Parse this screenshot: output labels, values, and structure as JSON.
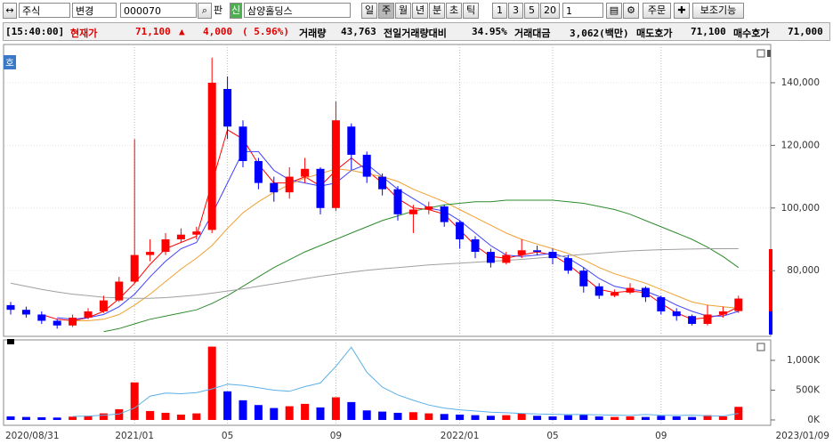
{
  "toolbar": {
    "market": "주식",
    "change": "변경",
    "code": "000070",
    "pan": "판",
    "new": "신",
    "name": "삼양홀딩스",
    "periods": [
      "일",
      "주",
      "월",
      "년",
      "분",
      "초",
      "틱"
    ],
    "intervals": [
      "1",
      "3",
      "5",
      "20"
    ],
    "count": "1",
    "order": "주문",
    "aux": "보조기능"
  },
  "info": [
    "[15:40:00]",
    "현재가",
    "71,100",
    "▲",
    "4,000",
    "( 5.96%)",
    "거래량",
    "43,763",
    "전일거래량대비",
    "34.95%",
    "거래대금",
    "3,062(백만)",
    "매도호가",
    "71,100",
    "매수호가",
    "71,000"
  ],
  "badge": "호",
  "chart_data": [
    {
      "type": "candlestick",
      "categories": [
        "2020/08/31",
        null,
        null,
        null,
        null,
        null,
        null,
        null,
        "2021/01",
        null,
        null,
        null,
        null,
        null,
        "05",
        null,
        null,
        null,
        null,
        null,
        null,
        "09",
        null,
        null,
        null,
        null,
        null,
        null,
        null,
        "2022/01",
        null,
        null,
        null,
        null,
        null,
        "05",
        null,
        null,
        null,
        null,
        null,
        null,
        "09",
        null,
        null,
        null,
        null,
        "2023/01/09"
      ],
      "open": [
        69000,
        67500,
        66000,
        64000,
        62500,
        65000,
        67000,
        70500,
        76500,
        85000,
        86000,
        90000,
        91500,
        93000,
        138000,
        126000,
        115000,
        108000,
        105000,
        110000,
        112500,
        100000,
        126000,
        117000,
        110000,
        106000,
        98000,
        99500,
        100500,
        95500,
        90000,
        86000,
        82500,
        85000,
        86500,
        86000,
        84000,
        80000,
        75000,
        72000,
        73000,
        74500,
        71500,
        67000,
        65500,
        63000,
        66000,
        67100
      ],
      "high": [
        70000,
        68500,
        67000,
        64500,
        66000,
        68000,
        72000,
        78000,
        122000,
        90000,
        92000,
        93500,
        94000,
        148000,
        142000,
        128000,
        116000,
        110000,
        113000,
        116000,
        113000,
        134000,
        127000,
        118000,
        111000,
        107000,
        101000,
        102000,
        101000,
        96000,
        91000,
        87000,
        86000,
        90000,
        88000,
        87000,
        85000,
        81000,
        76000,
        74000,
        76000,
        75000,
        72000,
        68000,
        66000,
        69000,
        68500,
        72000
      ],
      "low": [
        66000,
        65000,
        63000,
        61500,
        62000,
        64500,
        66500,
        70000,
        76000,
        83000,
        85000,
        89000,
        90000,
        92000,
        122000,
        113000,
        106000,
        102000,
        103000,
        108000,
        98000,
        99000,
        112000,
        108000,
        104000,
        96000,
        92000,
        98000,
        94000,
        87000,
        84000,
        81000,
        82000,
        84000,
        85000,
        82000,
        79000,
        73000,
        71000,
        71500,
        72500,
        70000,
        66000,
        64000,
        62500,
        62500,
        65000,
        66500
      ],
      "close": [
        67500,
        66000,
        64000,
        62500,
        65000,
        67000,
        70500,
        76500,
        85000,
        86000,
        90000,
        91500,
        92500,
        140000,
        126000,
        115000,
        108000,
        105000,
        110000,
        112500,
        100000,
        128000,
        117000,
        110000,
        106000,
        98000,
        99500,
        100500,
        95500,
        90000,
        86000,
        82500,
        85000,
        86500,
        86000,
        84000,
        80000,
        75000,
        72000,
        73000,
        74500,
        71500,
        67000,
        65500,
        63000,
        66000,
        67000,
        71100
      ],
      "up_color": "#ff0000",
      "down_color": "#0000ff",
      "series": [
        {
          "color": "#ff0000",
          "values": [
            null,
            null,
            66000,
            64500,
            64000,
            65000,
            67000,
            71000,
            76000,
            82000,
            87000,
            89000,
            91000,
            108000,
            125000,
            122000,
            114000,
            108000,
            108000,
            110000,
            107000,
            112000,
            116000,
            112000,
            108000,
            103000,
            100000,
            99500,
            98000,
            93000,
            88000,
            84500,
            84000,
            85000,
            86000,
            85000,
            82000,
            78000,
            74000,
            73000,
            73500,
            73000,
            69500,
            66500,
            64500,
            65000,
            66000,
            68500
          ]
        },
        {
          "color": "#4040ff",
          "values": [
            null,
            null,
            null,
            65000,
            64500,
            65000,
            66000,
            68500,
            72500,
            78000,
            83000,
            87000,
            89000,
            98000,
            108000,
            118000,
            118000,
            112000,
            109000,
            108000,
            107000,
            108000,
            112000,
            114000,
            110000,
            106000,
            103000,
            100000,
            99000,
            96000,
            92000,
            88000,
            85000,
            84500,
            85000,
            85500,
            84000,
            81000,
            77500,
            75000,
            74000,
            73500,
            71500,
            69000,
            67000,
            65500,
            65500,
            67000
          ]
        },
        {
          "color": "#f0a030",
          "values": [
            null,
            null,
            null,
            null,
            64000,
            64000,
            64500,
            66000,
            69000,
            72500,
            76500,
            80500,
            84000,
            88000,
            93500,
            98500,
            102000,
            105000,
            107500,
            109500,
            111000,
            112500,
            112000,
            111000,
            110000,
            108500,
            106000,
            104000,
            102000,
            99500,
            97000,
            94500,
            92000,
            90000,
            88500,
            87000,
            85500,
            83500,
            81000,
            79000,
            77500,
            76000,
            74000,
            72000,
            70000,
            69000,
            68500,
            68000
          ]
        },
        {
          "color": "#2e8b2e",
          "values": [
            null,
            null,
            null,
            null,
            null,
            null,
            60500,
            61500,
            63000,
            64500,
            65500,
            66500,
            67500,
            69500,
            72000,
            75000,
            78000,
            81000,
            83500,
            86000,
            88000,
            90000,
            92000,
            94000,
            96000,
            97500,
            99000,
            100000,
            101000,
            101500,
            102000,
            102000,
            102500,
            102500,
            102500,
            102500,
            102000,
            101500,
            100500,
            99500,
            98000,
            96000,
            94000,
            92000,
            90000,
            87500,
            84500,
            81000
          ]
        },
        {
          "color": "#a0a0a0",
          "values": [
            76000,
            75000,
            74000,
            73200,
            72500,
            72000,
            71500,
            71300,
            71200,
            71200,
            71400,
            71800,
            72200,
            72800,
            73500,
            74200,
            75000,
            75800,
            76600,
            77400,
            78200,
            78900,
            79500,
            80100,
            80600,
            81000,
            81400,
            81800,
            82100,
            82400,
            82700,
            83000,
            83300,
            83600,
            84000,
            84400,
            84800,
            85200,
            85600,
            86000,
            86300,
            86500,
            86700,
            86800,
            86900,
            87000,
            87000,
            87000
          ]
        }
      ],
      "ylim": [
        59600,
        150500
      ],
      "yticks": [
        {
          "value": 80000,
          "label": "80,000"
        },
        {
          "value": 100000,
          "label": "100,000"
        },
        {
          "value": 120000,
          "label": "120,000"
        },
        {
          "value": 140000,
          "label": "140,000"
        }
      ],
      "grid": true
    },
    {
      "type": "bar",
      "values": [
        60000,
        50000,
        45000,
        40000,
        55000,
        70000,
        110000,
        180000,
        630000,
        150000,
        120000,
        90000,
        110000,
        1230000,
        480000,
        330000,
        250000,
        200000,
        230000,
        270000,
        210000,
        380000,
        300000,
        160000,
        140000,
        120000,
        130000,
        110000,
        100000,
        90000,
        80000,
        70000,
        80000,
        110000,
        70000,
        60000,
        80000,
        90000,
        60000,
        50000,
        60000,
        50000,
        70000,
        60000,
        50000,
        80000,
        60000,
        220000
      ],
      "series": [
        {
          "color": "#5ab0e8",
          "values": [
            null,
            null,
            null,
            null,
            60000,
            65000,
            80000,
            100000,
            200000,
            400000,
            450000,
            440000,
            460000,
            520000,
            600000,
            580000,
            540000,
            500000,
            480000,
            560000,
            620000,
            900000,
            1220000,
            800000,
            550000,
            420000,
            330000,
            250000,
            200000,
            170000,
            150000,
            130000,
            120000,
            110000,
            100000,
            95000,
            90000,
            90000,
            85000,
            80000,
            75000,
            90000,
            80000,
            75000,
            80000,
            70000,
            65000,
            110000
          ]
        }
      ],
      "ylim": [
        -90000,
        1343000
      ],
      "yticks": [
        {
          "value": 0,
          "label": "0K"
        },
        {
          "value": 500000,
          "label": "500K"
        },
        {
          "value": 1000000,
          "label": "1,000K"
        }
      ]
    }
  ]
}
